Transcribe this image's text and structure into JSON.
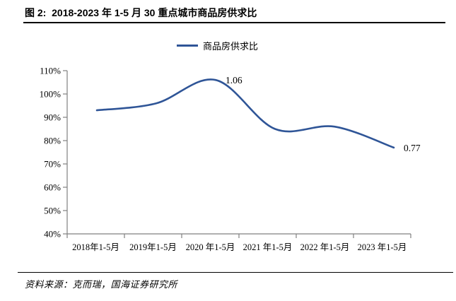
{
  "header": {
    "title": "图 2:  2018-2023 年 1-5 月 30 重点城市商品房供求比"
  },
  "legend": {
    "label": "商品房供求比"
  },
  "chart_data": {
    "type": "line",
    "series_name": "商品房供求比",
    "categories": [
      "2018年1-5月",
      "2019年1-5月",
      "2020 年1-5月",
      "2021 年1-5月",
      "2022 年1-5月",
      "2023 年1-5月"
    ],
    "values": [
      0.93,
      0.96,
      1.06,
      0.85,
      0.86,
      0.77
    ],
    "point_labels": {
      "2": "1.06",
      "5": "0.77"
    },
    "ylim": [
      0.4,
      1.1
    ],
    "ytick_step": 0.1,
    "ytick_labels": [
      "40%",
      "50%",
      "60%",
      "70%",
      "80%",
      "90%",
      "100%",
      "110%"
    ],
    "line_color": "#2F5597",
    "axis_color": "#808080",
    "smooth": true,
    "grid": false,
    "legend_position": "top-center"
  },
  "footer": {
    "source": "资料来源：克而瑞，国海证券研究所"
  }
}
